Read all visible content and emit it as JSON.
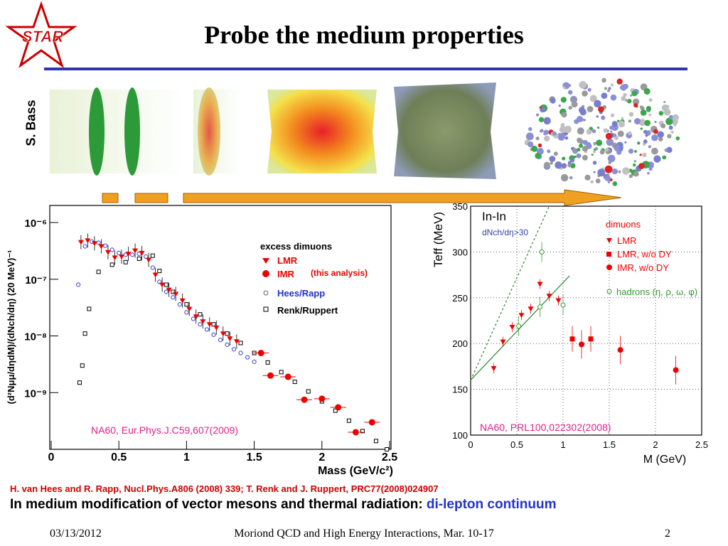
{
  "logo": {
    "text": "STAR",
    "star_color": "#cc0000",
    "text_color": "#cc0000"
  },
  "title": "Probe the medium properties",
  "sidebar_credit": "S. Bass",
  "left_panel": {
    "legend_header": "excess dimuons",
    "legend": [
      {
        "label": "LMR",
        "marker": "triangle-down",
        "color": "#ee0000"
      },
      {
        "label": "IMR",
        "marker": "circle",
        "color": "#ee0000",
        "note": "(this analysis)"
      },
      {
        "label": "Hees/Rapp",
        "marker": "open-circle",
        "color": "#3344cc"
      },
      {
        "label": "Renk/Ruppert",
        "marker": "open-square",
        "color": "#000000"
      }
    ],
    "citation": "NA60, Eur.Phys.J.C59,607(2009)",
    "xlabel": "Mass (GeV/c²)",
    "ylabel": "(d²Nμμ/dηdM)/(dNch/dη) (20 MeV)⁻¹"
  },
  "right_panel": {
    "system": "In-In",
    "cut": "dNch/dη>30",
    "legend_header": "dimuons",
    "legend": [
      {
        "label": "LMR",
        "marker": "triangle-down",
        "color": "#ee0000"
      },
      {
        "label": "LMR, w/o DY",
        "marker": "square",
        "color": "#ee0000"
      },
      {
        "label": "IMR,  w/o DY",
        "marker": "circle",
        "color": "#ee0000"
      },
      {
        "label": "hadrons (η, ρ, ω, φ)",
        "marker": "open-circle",
        "color": "#339933"
      }
    ],
    "citation": "NA60, PRL100,022302(2008)",
    "xlabel": "M (GeV)",
    "ylabel": "Teff (MeV)"
  },
  "references": "H. van Hees and R. Rapp, Nucl.Phys.A806 (2008) 339; T. Renk and J. Ruppert, PRC77(2008)024907",
  "caption_main": "In medium modification of vector mesons and thermal radiation: ",
  "caption_highlight": "di-lepton continuum",
  "footer": {
    "date": "03/13/2012",
    "conference": "Moriond QCD and High Energy Interactions, Mar. 10-17",
    "page": "2"
  },
  "chart_data": [
    {
      "type": "scatter",
      "title": "",
      "xlabel": "Mass (GeV/c²)",
      "ylabel": "(d²Nμμ/dηdM)/(dNch/dη) (20 MeV)⁻¹",
      "xlim": [
        0,
        2.5
      ],
      "ylim": [
        1e-10,
        2e-06
      ],
      "yscale": "log",
      "x_ticks": [
        "0",
        "0.5",
        "1",
        "1.5",
        "2",
        "2.5"
      ],
      "y_ticks": [
        "10⁻⁶",
        "10⁻⁷",
        "10⁻⁸",
        "10⁻⁹"
      ],
      "y_tick_values": [
        1e-06,
        1e-07,
        1e-08,
        1e-09
      ],
      "series": [
        {
          "name": "LMR",
          "x": [
            0.22,
            0.27,
            0.32,
            0.37,
            0.42,
            0.47,
            0.52,
            0.57,
            0.62,
            0.67,
            0.72,
            0.77,
            0.82,
            0.87,
            0.92,
            0.97,
            1.02,
            1.07,
            1.12,
            1.17,
            1.22,
            1.27,
            1.32,
            1.37
          ],
          "y": [
            4.5e-07,
            4.8e-07,
            4.3e-07,
            3.8e-07,
            3e-07,
            2.4e-07,
            2.5e-07,
            2.8e-07,
            3.2e-07,
            2.9e-07,
            2.2e-07,
            1.2e-07,
            8e-08,
            6.5e-08,
            5.5e-08,
            4.2e-08,
            3e-08,
            2.2e-08,
            1.8e-08,
            1.6e-08,
            1.4e-08,
            1.1e-08,
            9e-09,
            8e-09
          ]
        },
        {
          "name": "IMR",
          "x": [
            1.55,
            1.62,
            1.75,
            1.87,
            2.0,
            2.12,
            2.25,
            2.37
          ],
          "y": [
            5e-09,
            2e-09,
            1.9e-09,
            7.5e-10,
            7.8e-10,
            5.5e-10,
            2e-10,
            3e-10
          ]
        },
        {
          "name": "Hees/Rapp",
          "x": [
            0.2,
            0.25,
            0.3,
            0.35,
            0.4,
            0.45,
            0.5,
            0.55,
            0.6,
            0.65,
            0.7,
            0.75,
            0.8,
            0.85,
            0.9,
            0.95,
            1.0,
            1.05,
            1.1,
            1.15,
            1.2,
            1.25,
            1.3,
            1.35,
            1.4,
            1.45,
            1.5
          ],
          "y": [
            8e-08,
            3.8e-07,
            4.6e-07,
            4.4e-07,
            3.9e-07,
            3.3e-07,
            2.9e-07,
            2.7e-07,
            2.7e-07,
            2.8e-07,
            2.5e-07,
            1.6e-07,
            9e-08,
            6e-08,
            4.8e-08,
            3.6e-08,
            2.6e-08,
            2e-08,
            1.6e-08,
            1.3e-08,
            1.05e-08,
            8.5e-09,
            7e-09,
            5.8e-09,
            5e-09,
            4.2e-09,
            3.5e-09
          ]
        },
        {
          "name": "Renk/Ruppert",
          "x": [
            0.21,
            0.23,
            0.25,
            0.28,
            0.35,
            0.45,
            0.55,
            0.65,
            0.75,
            0.8,
            0.85,
            0.9,
            1.0,
            1.1,
            1.2,
            1.3,
            1.4,
            1.5,
            1.6,
            1.7,
            1.8,
            1.9,
            2.0,
            2.1,
            2.2,
            2.3,
            2.4,
            2.48
          ],
          "y": [
            1.5e-09,
            3e-09,
            1.1e-08,
            3e-08,
            1.35e-07,
            1.8e-07,
            2e-07,
            2.3e-07,
            2.6e-07,
            1.4e-07,
            8e-08,
            6e-08,
            3.6e-08,
            2.4e-08,
            1.6e-08,
            1.1e-08,
            7.5e-09,
            5e-09,
            3.4e-09,
            2.3e-09,
            1.55e-09,
            1.05e-09,
            7e-10,
            4.8e-10,
            3.2e-10,
            2.1e-10,
            1.4e-10,
            1e-10
          ]
        }
      ]
    },
    {
      "type": "scatter",
      "title": "",
      "xlabel": "M (GeV)",
      "ylabel": "Teff (MeV)",
      "xlim": [
        0,
        2.5
      ],
      "ylim": [
        100,
        350
      ],
      "x_ticks": [
        "0",
        "0.5",
        "1",
        "1.5",
        "2",
        "2.5"
      ],
      "y_ticks": [
        "100",
        "150",
        "200",
        "250",
        "300",
        "350"
      ],
      "grid": true,
      "series": [
        {
          "name": "LMR",
          "x": [
            0.25,
            0.35,
            0.45,
            0.55,
            0.65,
            0.75,
            0.85,
            0.95
          ],
          "y": [
            173,
            202,
            218,
            231,
            238,
            265,
            252,
            247
          ]
        },
        {
          "name": "LMR, w/o DY",
          "x": [
            1.1,
            1.3
          ],
          "y": [
            205,
            205
          ]
        },
        {
          "name": "IMR,  w/o DY",
          "x": [
            1.2,
            1.62,
            2.22
          ],
          "y": [
            199,
            193,
            171
          ]
        },
        {
          "name": "hadrons (η, ρ, ω, φ)",
          "x": [
            0.52,
            0.75,
            0.77,
            1.0
          ],
          "y": [
            219,
            240,
            300,
            242
          ]
        }
      ],
      "fit_lines": [
        {
          "from": [
            0,
            160
          ],
          "to": [
            1.07,
            274
          ],
          "style": "solid"
        },
        {
          "from": [
            0,
            160
          ],
          "to": [
            0.85,
            350
          ],
          "style": "dashed"
        }
      ]
    }
  ]
}
